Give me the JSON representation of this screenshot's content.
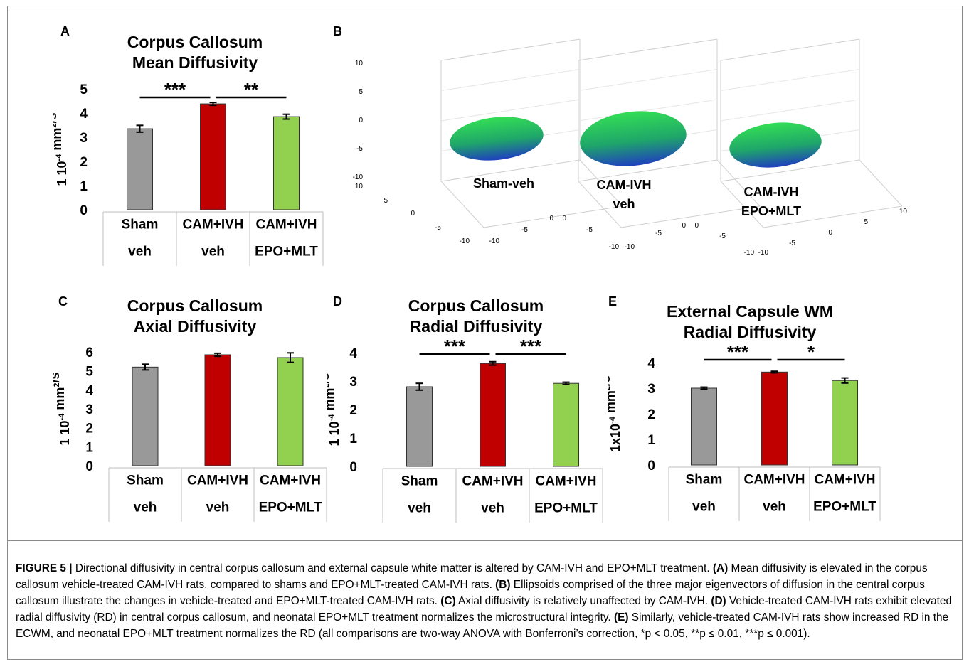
{
  "figure": {
    "caption_label": "FIGURE 5 |",
    "caption_parts": [
      {
        "t": " Directional diffusivity in central corpus callosum and external capsule white matter is altered by CAM-IVH and EPO+MLT treatment. ",
        "b": false
      },
      {
        "t": "(A)",
        "b": true
      },
      {
        "t": " Mean diffusivity is elevated in the corpus callosum vehicle-treated CAM-IVH rats, compared to shams and EPO+MLT-treated CAM-IVH rats. ",
        "b": false
      },
      {
        "t": "(B)",
        "b": true
      },
      {
        "t": " Ellipsoids comprised of the three major eigenvectors of diffusion in the central corpus callosum illustrate the changes in vehicle-treated and EPO+MLT-treated CAM-IVH rats. ",
        "b": false
      },
      {
        "t": "(C)",
        "b": true
      },
      {
        "t": " Axial diffusivity is relatively unaffected by CAM-IVH. ",
        "b": false
      },
      {
        "t": "(D)",
        "b": true
      },
      {
        "t": " Vehicle-treated CAM-IVH rats exhibit elevated radial diffusivity (RD) in central corpus callosum, and neonatal EPO+MLT treatment normalizes the microstructural integrity. ",
        "b": false
      },
      {
        "t": "(E)",
        "b": true
      },
      {
        "t": " Similarly, vehicle-treated CAM-IVH rats show increased RD in the ECWM, and neonatal EPO+MLT treatment normalizes the RD (all comparisons are two-way ANOVA with Bonferroni’s correction, *p < 0.05, **p ≤ 0.01, ***p ≤ 0.001).",
        "b": false
      }
    ]
  },
  "panels": {
    "A": {
      "letter": "A",
      "title1": "Corpus Callosum",
      "title2": "Mean Diffusivity"
    },
    "B": {
      "letter": "B"
    },
    "C": {
      "letter": "C",
      "title1": "Corpus Callosum",
      "title2": "Axial Diffusivity"
    },
    "D": {
      "letter": "D",
      "title1": "Corpus Callosum",
      "title2": "Radial Diffusivity"
    },
    "E": {
      "letter": "E",
      "title1": "External Capsule WM",
      "title2": "Radial Diffusivity"
    }
  },
  "colors": {
    "sham": "#999999",
    "cam_veh": "#c00000",
    "cam_epo": "#92d050",
    "ellipsoid_top": "#33dd55",
    "ellipsoid_bottom": "#1f3fbf"
  },
  "chart_data": [
    {
      "panel": "A",
      "type": "bar",
      "ylabel": "1 10-4 mm2/s",
      "ylim": [
        0,
        5
      ],
      "yticks": [
        0,
        1,
        2,
        3,
        4,
        5
      ],
      "categories": [
        [
          "Sham",
          "veh"
        ],
        [
          "CAM+IVH",
          "veh"
        ],
        [
          "CAM+IVH",
          "EPO+MLT"
        ]
      ],
      "values": [
        3.35,
        4.38,
        3.85
      ],
      "errors": [
        0.14,
        0.06,
        0.1
      ],
      "significance": [
        {
          "from": 0,
          "to": 1,
          "label": "***"
        },
        {
          "from": 1,
          "to": 2,
          "label": "**"
        }
      ]
    },
    {
      "panel": "C",
      "type": "bar",
      "ylabel": "1 10-4 mm2/s",
      "ylim": [
        0,
        6
      ],
      "yticks": [
        0,
        1,
        2,
        3,
        4,
        5,
        6
      ],
      "categories": [
        [
          "Sham",
          "veh"
        ],
        [
          "CAM+IVH",
          "veh"
        ],
        [
          "CAM+IVH",
          "EPO+MLT"
        ]
      ],
      "values": [
        5.2,
        5.85,
        5.7
      ],
      "errors": [
        0.15,
        0.08,
        0.25
      ],
      "significance": []
    },
    {
      "panel": "D",
      "type": "bar",
      "ylabel": "1 10-4 mm2/s",
      "ylim": [
        0,
        4
      ],
      "yticks": [
        0,
        1,
        2,
        3,
        4
      ],
      "categories": [
        [
          "Sham",
          "veh"
        ],
        [
          "CAM+IVH",
          "veh"
        ],
        [
          "CAM+IVH",
          "EPO+MLT"
        ]
      ],
      "values": [
        2.8,
        3.62,
        2.92
      ],
      "errors": [
        0.12,
        0.06,
        0.04
      ],
      "significance": [
        {
          "from": 0,
          "to": 1,
          "label": "***"
        },
        {
          "from": 1,
          "to": 2,
          "label": "***"
        }
      ]
    },
    {
      "panel": "E",
      "type": "bar",
      "ylabel": "1x10-4 mm2/s",
      "ylim": [
        0,
        4
      ],
      "yticks": [
        0,
        1,
        2,
        3,
        4
      ],
      "categories": [
        [
          "Sham",
          "veh"
        ],
        [
          "CAM+IVH",
          "veh"
        ],
        [
          "CAM+IVH",
          "EPO+MLT"
        ]
      ],
      "values": [
        3.0,
        3.63,
        3.3
      ],
      "errors": [
        0.04,
        0.03,
        0.1
      ],
      "significance": [
        {
          "from": 0,
          "to": 1,
          "label": "***"
        },
        {
          "from": 1,
          "to": 2,
          "label": "*"
        }
      ]
    },
    {
      "panel": "B",
      "type": "scatter",
      "axis_ticks": [
        "10",
        "5",
        "0",
        "-5",
        "-10"
      ],
      "groups": [
        "Sham-veh",
        "CAM-IVH veh",
        "CAM-IVH EPO+MLT"
      ],
      "group_labels": [
        [
          "Sham-veh"
        ],
        [
          "CAM-IVH",
          "veh"
        ],
        [
          "CAM-IVH",
          "EPO+MLT"
        ]
      ]
    }
  ]
}
